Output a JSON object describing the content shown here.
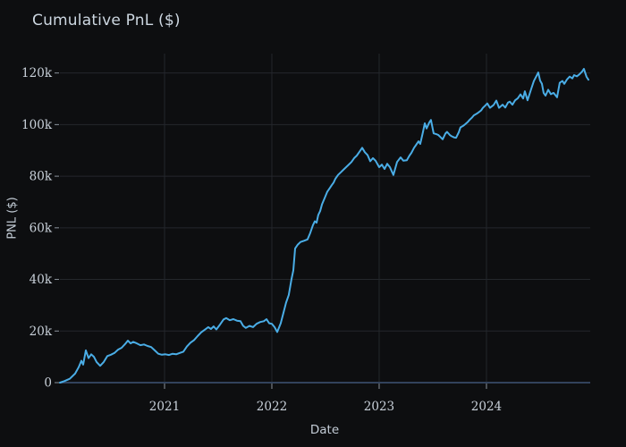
{
  "title": "Cumulative PnL ($)",
  "axes": {
    "xlabel": "Date",
    "ylabel": "PNL ($)"
  },
  "colors": {
    "background": "#0d0e10",
    "line": "#4aade6",
    "grid": "#24272c",
    "zero_line": "#32425c",
    "tick_mark": "#8b939c",
    "tick_text": "#c9d1da",
    "title_text": "#cdd7e1"
  },
  "chart_data": {
    "type": "line",
    "title": "Cumulative PnL ($)",
    "xlabel": "Date",
    "ylabel": "PNL ($)",
    "legend_position": "none",
    "grid": true,
    "unit_note": "y values in thousands of dollars (k)",
    "x_range": [
      2020.025,
      2024.967
    ],
    "y_range_k": [
      0,
      127.5
    ],
    "x_ticks": [
      {
        "v": 2021,
        "label": "2021"
      },
      {
        "v": 2022,
        "label": "2022"
      },
      {
        "v": 2023,
        "label": "2023"
      },
      {
        "v": 2024,
        "label": "2024"
      }
    ],
    "y_ticks": [
      {
        "v": 0,
        "label": "0"
      },
      {
        "v": 20,
        "label": "20k"
      },
      {
        "v": 40,
        "label": "40k"
      },
      {
        "v": 60,
        "label": "60k"
      },
      {
        "v": 80,
        "label": "80k"
      },
      {
        "v": 100,
        "label": "100k"
      },
      {
        "v": 120,
        "label": "120k"
      }
    ],
    "series": [
      {
        "name": "Cumulative PnL",
        "color": "#4aade6",
        "points": [
          [
            2020.025,
            0
          ],
          [
            2020.067,
            0.6
          ],
          [
            2020.117,
            1.5
          ],
          [
            2020.167,
            3.5
          ],
          [
            2020.2,
            6.0
          ],
          [
            2020.225,
            8.5
          ],
          [
            2020.242,
            7.0
          ],
          [
            2020.267,
            12.5
          ],
          [
            2020.292,
            9.5
          ],
          [
            2020.317,
            11.0
          ],
          [
            2020.342,
            10.0
          ],
          [
            2020.367,
            8.0
          ],
          [
            2020.4,
            6.5
          ],
          [
            2020.433,
            8.0
          ],
          [
            2020.467,
            10.3
          ],
          [
            2020.5,
            10.8
          ],
          [
            2020.533,
            11.5
          ],
          [
            2020.567,
            12.8
          ],
          [
            2020.6,
            13.5
          ],
          [
            2020.633,
            15.0
          ],
          [
            2020.658,
            16.3
          ],
          [
            2020.683,
            15.2
          ],
          [
            2020.708,
            15.8
          ],
          [
            2020.742,
            15.2
          ],
          [
            2020.775,
            14.5
          ],
          [
            2020.808,
            14.8
          ],
          [
            2020.842,
            14.2
          ],
          [
            2020.875,
            13.8
          ],
          [
            2020.908,
            12.5
          ],
          [
            2020.942,
            11.2
          ],
          [
            2020.975,
            10.8
          ],
          [
            2021.008,
            11.0
          ],
          [
            2021.042,
            10.7
          ],
          [
            2021.075,
            11.2
          ],
          [
            2021.108,
            11.0
          ],
          [
            2021.142,
            11.5
          ],
          [
            2021.175,
            12.0
          ],
          [
            2021.208,
            14.0
          ],
          [
            2021.242,
            15.5
          ],
          [
            2021.275,
            16.5
          ],
          [
            2021.308,
            18.0
          ],
          [
            2021.342,
            19.5
          ],
          [
            2021.375,
            20.5
          ],
          [
            2021.408,
            21.5
          ],
          [
            2021.433,
            20.8
          ],
          [
            2021.458,
            21.8
          ],
          [
            2021.483,
            20.6
          ],
          [
            2021.517,
            22.5
          ],
          [
            2021.55,
            24.5
          ],
          [
            2021.575,
            25.0
          ],
          [
            2021.608,
            24.2
          ],
          [
            2021.642,
            24.6
          ],
          [
            2021.675,
            24.0
          ],
          [
            2021.708,
            23.8
          ],
          [
            2021.733,
            22.0
          ],
          [
            2021.758,
            21.2
          ],
          [
            2021.792,
            22.0
          ],
          [
            2021.825,
            21.5
          ],
          [
            2021.858,
            22.8
          ],
          [
            2021.892,
            23.5
          ],
          [
            2021.925,
            23.8
          ],
          [
            2021.95,
            24.6
          ],
          [
            2021.975,
            23.0
          ],
          [
            2022.0,
            22.8
          ],
          [
            2022.025,
            21.5
          ],
          [
            2022.05,
            19.6
          ],
          [
            2022.083,
            23.0
          ],
          [
            2022.108,
            27.0
          ],
          [
            2022.133,
            31.0
          ],
          [
            2022.158,
            34.0
          ],
          [
            2022.183,
            40.0
          ],
          [
            2022.2,
            43.5
          ],
          [
            2022.217,
            52.0
          ],
          [
            2022.242,
            53.5
          ],
          [
            2022.267,
            54.5
          ],
          [
            2022.3,
            55.0
          ],
          [
            2022.333,
            55.5
          ],
          [
            2022.358,
            58.0
          ],
          [
            2022.383,
            61.0
          ],
          [
            2022.4,
            62.5
          ],
          [
            2022.417,
            62.0
          ],
          [
            2022.433,
            65.0
          ],
          [
            2022.45,
            66.5
          ],
          [
            2022.467,
            69.0
          ],
          [
            2022.492,
            71.5
          ],
          [
            2022.517,
            74.0
          ],
          [
            2022.542,
            75.5
          ],
          [
            2022.558,
            76.5
          ],
          [
            2022.575,
            77.5
          ],
          [
            2022.592,
            79.0
          ],
          [
            2022.617,
            80.5
          ],
          [
            2022.642,
            81.5
          ],
          [
            2022.667,
            82.5
          ],
          [
            2022.692,
            83.5
          ],
          [
            2022.717,
            84.5
          ],
          [
            2022.742,
            85.5
          ],
          [
            2022.767,
            87.0
          ],
          [
            2022.792,
            88.0
          ],
          [
            2022.817,
            89.5
          ],
          [
            2022.842,
            91.0
          ],
          [
            2022.867,
            89.3
          ],
          [
            2022.892,
            88.2
          ],
          [
            2022.917,
            85.8
          ],
          [
            2022.942,
            87.0
          ],
          [
            2022.967,
            86.0
          ],
          [
            2023.0,
            83.5
          ],
          [
            2023.025,
            84.5
          ],
          [
            2023.05,
            82.8
          ],
          [
            2023.075,
            84.8
          ],
          [
            2023.1,
            83.5
          ],
          [
            2023.133,
            80.5
          ],
          [
            2023.167,
            85.5
          ],
          [
            2023.2,
            87.3
          ],
          [
            2023.225,
            86.0
          ],
          [
            2023.258,
            86.2
          ],
          [
            2023.283,
            88.0
          ],
          [
            2023.3,
            89.0
          ],
          [
            2023.325,
            91.0
          ],
          [
            2023.342,
            92.0
          ],
          [
            2023.367,
            93.5
          ],
          [
            2023.383,
            92.5
          ],
          [
            2023.408,
            97.0
          ],
          [
            2023.425,
            100.5
          ],
          [
            2023.442,
            98.5
          ],
          [
            2023.467,
            100.8
          ],
          [
            2023.483,
            101.8
          ],
          [
            2023.508,
            96.6
          ],
          [
            2023.533,
            96.3
          ],
          [
            2023.55,
            96.0
          ],
          [
            2023.575,
            95.0
          ],
          [
            2023.592,
            94.3
          ],
          [
            2023.617,
            96.5
          ],
          [
            2023.633,
            97.2
          ],
          [
            2023.658,
            96.0
          ],
          [
            2023.675,
            95.5
          ],
          [
            2023.7,
            95.0
          ],
          [
            2023.717,
            94.9
          ],
          [
            2023.742,
            97.0
          ],
          [
            2023.758,
            98.9
          ],
          [
            2023.783,
            99.5
          ],
          [
            2023.8,
            100.1
          ],
          [
            2023.825,
            101.0
          ],
          [
            2023.842,
            101.8
          ],
          [
            2023.867,
            102.8
          ],
          [
            2023.883,
            103.6
          ],
          [
            2023.908,
            104.2
          ],
          [
            2023.925,
            104.7
          ],
          [
            2023.95,
            105.5
          ],
          [
            2023.967,
            106.5
          ],
          [
            2023.992,
            107.5
          ],
          [
            2024.008,
            108.2
          ],
          [
            2024.033,
            106.5
          ],
          [
            2024.067,
            107.6
          ],
          [
            2024.092,
            109.3
          ],
          [
            2024.117,
            106.5
          ],
          [
            2024.15,
            107.7
          ],
          [
            2024.175,
            106.6
          ],
          [
            2024.2,
            108.5
          ],
          [
            2024.217,
            108.9
          ],
          [
            2024.242,
            107.7
          ],
          [
            2024.267,
            109.4
          ],
          [
            2024.292,
            110.2
          ],
          [
            2024.317,
            111.7
          ],
          [
            2024.342,
            110.1
          ],
          [
            2024.358,
            112.9
          ],
          [
            2024.383,
            109.4
          ],
          [
            2024.417,
            113.8
          ],
          [
            2024.442,
            116.9
          ],
          [
            2024.467,
            118.9
          ],
          [
            2024.483,
            120.2
          ],
          [
            2024.5,
            117.0
          ],
          [
            2024.517,
            115.8
          ],
          [
            2024.533,
            112.3
          ],
          [
            2024.55,
            111.2
          ],
          [
            2024.575,
            113.5
          ],
          [
            2024.6,
            111.8
          ],
          [
            2024.625,
            112.3
          ],
          [
            2024.658,
            110.6
          ],
          [
            2024.683,
            116.2
          ],
          [
            2024.708,
            116.9
          ],
          [
            2024.725,
            115.8
          ],
          [
            2024.75,
            117.5
          ],
          [
            2024.775,
            118.6
          ],
          [
            2024.8,
            117.9
          ],
          [
            2024.817,
            119.2
          ],
          [
            2024.842,
            118.7
          ],
          [
            2024.867,
            119.5
          ],
          [
            2024.892,
            120.6
          ],
          [
            2024.908,
            121.6
          ],
          [
            2024.933,
            118.5
          ],
          [
            2024.95,
            117.4
          ]
        ]
      }
    ]
  }
}
